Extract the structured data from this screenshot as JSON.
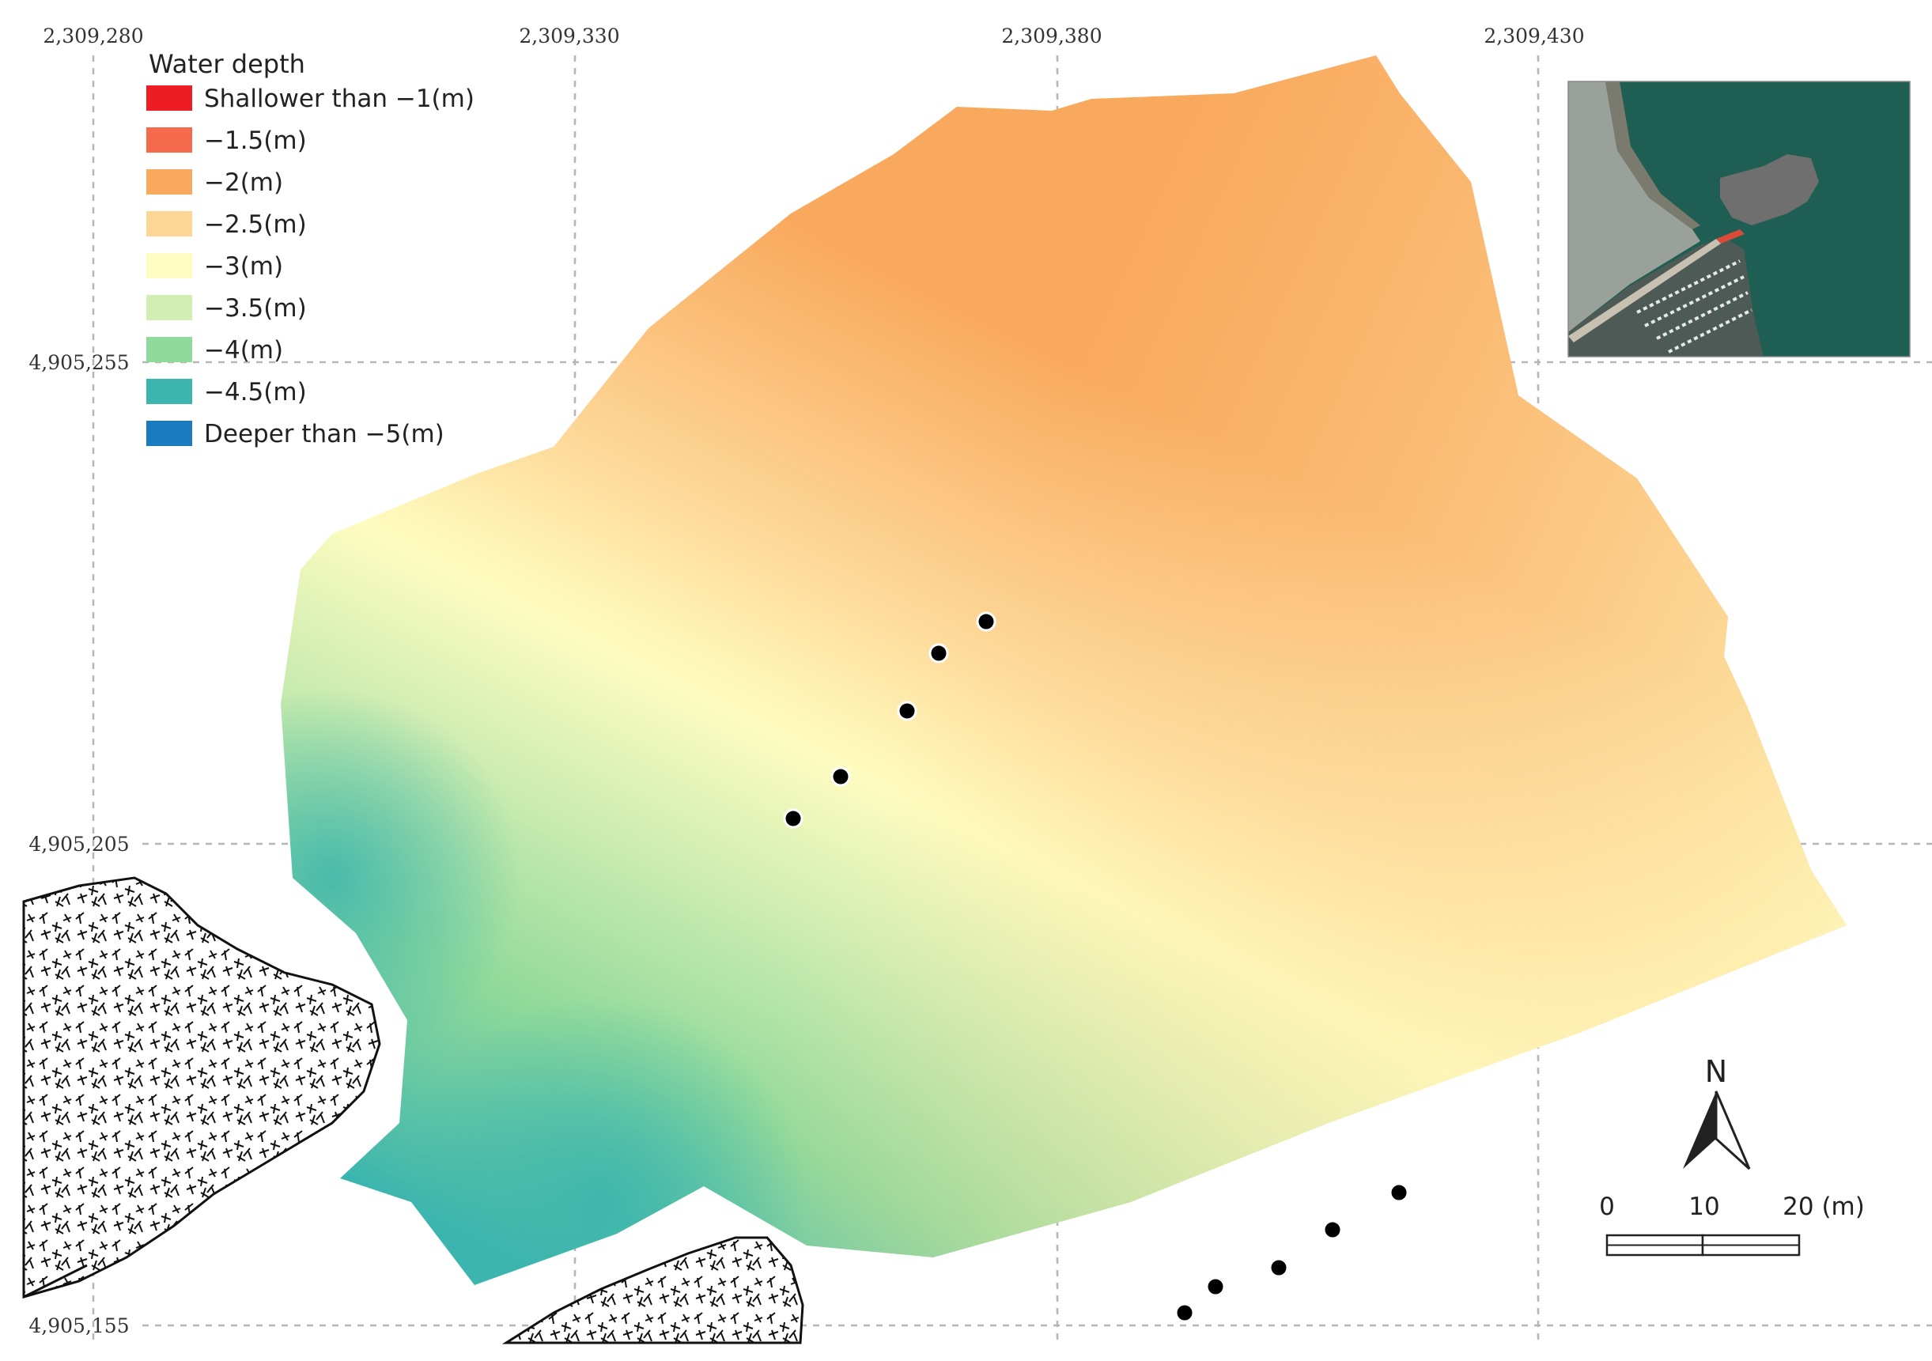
{
  "map": {
    "grid": {
      "x_labels": [
        "2,309,280",
        "2,309,330",
        "2,309,380",
        "2,309,430"
      ],
      "y_labels": [
        "4,905,255",
        "4,905,205",
        "4,905,155"
      ]
    },
    "legend": {
      "title": "Water depth",
      "items": [
        {
          "label": "Shallower than −1(m)",
          "color": "#ee1c25"
        },
        {
          "label": "−1.5(m)",
          "color": "#f56a4a"
        },
        {
          "label": "−2(m)",
          "color": "#f9a95e"
        },
        {
          "label": "−2.5(m)",
          "color": "#fdd594"
        },
        {
          "label": "−3(m)",
          "color": "#fefcc0"
        },
        {
          "label": "−3.5(m)",
          "color": "#d2eeb2"
        },
        {
          "label": "−4(m)",
          "color": "#8fd99a"
        },
        {
          "label": "−4.5(m)",
          "color": "#3bb5ae"
        },
        {
          "label": "Deeper than −5(m)",
          "color": "#1b7bbf"
        }
      ]
    },
    "scale_bar": {
      "labels": [
        "0",
        "10",
        "20 (m)"
      ]
    },
    "north_arrow": {
      "label": "N"
    },
    "colors": {
      "shallow": "#f9a95e",
      "mid": "#fdd594",
      "light": "#fefcc0",
      "deep": "#3bb5ae",
      "sea": "#1f5e52",
      "land": "#9aa09a",
      "structure": "#6f6f6f"
    },
    "icons": {
      "inset": "satellite-inset-icon",
      "north": "north-arrow-icon",
      "land": "rock-hatch-icon"
    }
  }
}
